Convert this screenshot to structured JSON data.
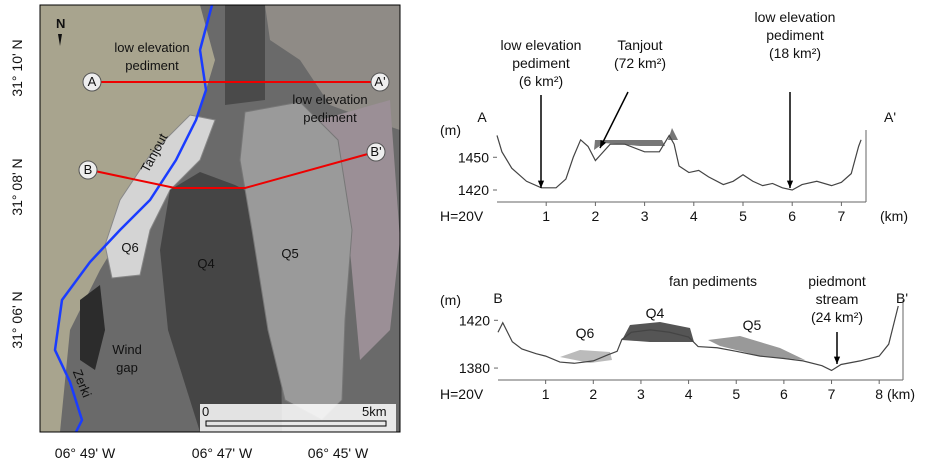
{
  "map": {
    "north": "N",
    "lat_labels": [
      "31° 10' N",
      "31° 08' N",
      "31° 06' N"
    ],
    "lon_labels": [
      "06° 49' W",
      "06° 47' W",
      "06° 45' W"
    ],
    "pediment_left": [
      "low elevation",
      "pediment"
    ],
    "pediment_right": [
      "low elevation",
      "pediment"
    ],
    "points": [
      "A",
      "A'",
      "B",
      "B'"
    ],
    "units": [
      "Q6",
      "Q4",
      "Q5"
    ],
    "river": "Tanjout",
    "stream": "Zerki",
    "gap": [
      "Wind",
      "gap"
    ],
    "scale": [
      "0",
      "5km"
    ]
  },
  "chart_data": [
    {
      "type": "line",
      "start_label": "A",
      "end_label": "A'",
      "y_unit": "(m)",
      "x_unit": "(km)",
      "scale_note": "H=20V",
      "annotations": [
        [
          "low elevation",
          "pediment",
          "(6 km²)"
        ],
        [
          "Tanjout",
          "(72 km²)"
        ],
        [
          "low elevation",
          "pediment",
          "(18 km²)"
        ]
      ],
      "x": [
        0.0,
        0.1,
        0.3,
        0.6,
        0.9,
        1.2,
        1.4,
        1.55,
        1.7,
        1.85,
        2.0,
        2.1,
        2.3,
        2.6,
        3.0,
        3.3,
        3.5,
        3.6,
        3.7,
        3.9,
        4.1,
        4.3,
        4.6,
        4.8,
        5.0,
        5.2,
        5.4,
        5.6,
        5.8,
        6.0,
        6.2,
        6.5,
        6.8,
        7.0,
        7.2,
        7.35,
        7.4
      ],
      "values": [
        1470,
        1455,
        1440,
        1428,
        1422,
        1422,
        1430,
        1450,
        1466,
        1460,
        1447,
        1452,
        1462,
        1462,
        1455,
        1455,
        1470,
        1462,
        1442,
        1436,
        1438,
        1432,
        1425,
        1428,
        1434,
        1428,
        1424,
        1426,
        1422,
        1420,
        1425,
        1428,
        1424,
        1427,
        1435,
        1460,
        1466
      ],
      "color": "#444444",
      "xlim": [
        0,
        7.5
      ],
      "ylim": [
        1409,
        1475
      ],
      "xticks": [
        1,
        2,
        3,
        4,
        5,
        6,
        7
      ],
      "yticks": [
        1420,
        1450
      ]
    },
    {
      "type": "line",
      "start_label": "B",
      "end_label": "B'",
      "y_unit": "(m)",
      "x_unit": "(km)",
      "scale_note": "H=20V",
      "annotations": [
        [
          "fan pediments"
        ],
        [
          "Q6"
        ],
        [
          "Q4"
        ],
        [
          "Q5"
        ],
        [
          "piedmont",
          "stream",
          "(24 km²)"
        ]
      ],
      "x": [
        0.0,
        0.1,
        0.3,
        0.5,
        0.8,
        1.0,
        1.3,
        1.6,
        2.0,
        2.3,
        2.5,
        2.6,
        2.8,
        3.2,
        3.6,
        4.0,
        4.2,
        4.6,
        5.0,
        5.5,
        6.0,
        6.4,
        6.8,
        7.0,
        7.2,
        7.6,
        8.0,
        8.2,
        8.4
      ],
      "values": [
        1410,
        1418,
        1402,
        1396,
        1392,
        1390,
        1385,
        1384,
        1386,
        1391,
        1394,
        1404,
        1410,
        1412,
        1410,
        1406,
        1398,
        1397,
        1394,
        1390,
        1388,
        1386,
        1382,
        1378,
        1383,
        1386,
        1390,
        1400,
        1432
      ],
      "color": "#444444",
      "xlim": [
        0,
        8.5
      ],
      "ylim": [
        1370,
        1437
      ],
      "xticks": [
        1,
        2,
        3,
        4,
        5,
        6,
        7,
        8
      ],
      "yticks": [
        1380,
        1420
      ]
    }
  ]
}
